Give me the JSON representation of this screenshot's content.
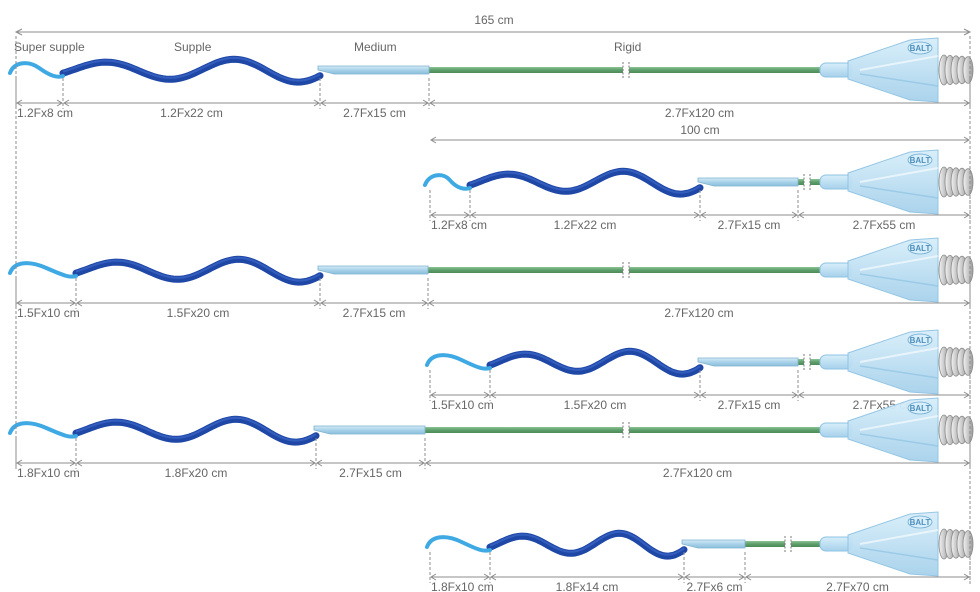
{
  "colors": {
    "tip": "#3fa9e3",
    "supple": "#1f47a6",
    "supple_light": "#3d68c9",
    "medium": "#a9d2e9",
    "medium_edge": "#7fb3d1",
    "rigid": "#5e9e6a",
    "rigid_light": "#8cc596",
    "hub": "#bfe0f3",
    "hub_edge": "#8ec3e3",
    "dim_text": "#666666"
  },
  "header": {
    "total_length": "165 cm",
    "sections": [
      "Super supple",
      "Supple",
      "Medium",
      "Rigid"
    ]
  },
  "hub_logo": "BALT",
  "catheters": [
    {
      "total_label": "",
      "labels": [
        "1.2Fx8 cm",
        "1.2Fx22 cm",
        "2.7Fx15 cm",
        "2.7Fx120 cm"
      ]
    },
    {
      "total_label": "100 cm",
      "labels": [
        "1.2Fx8 cm",
        "1.2Fx22 cm",
        "2.7Fx15 cm",
        "2.7Fx55 cm"
      ]
    },
    {
      "total_label": "",
      "labels": [
        "1.5Fx10 cm",
        "1.5Fx20 cm",
        "2.7Fx15 cm",
        "2.7Fx120 cm"
      ]
    },
    {
      "total_label": "",
      "labels": [
        "1.5Fx10 cm",
        "1.5Fx20 cm",
        "2.7Fx15 cm",
        "2.7Fx55 cm"
      ]
    },
    {
      "total_label": "",
      "labels": [
        "1.8Fx10 cm",
        "1.8Fx20 cm",
        "2.7Fx15 cm",
        "2.7Fx120 cm"
      ]
    },
    {
      "total_label": "",
      "labels": [
        "1.8Fx10 cm",
        "1.8Fx14 cm",
        "2.7Fx6 cm",
        "2.7Fx70 cm"
      ]
    }
  ]
}
